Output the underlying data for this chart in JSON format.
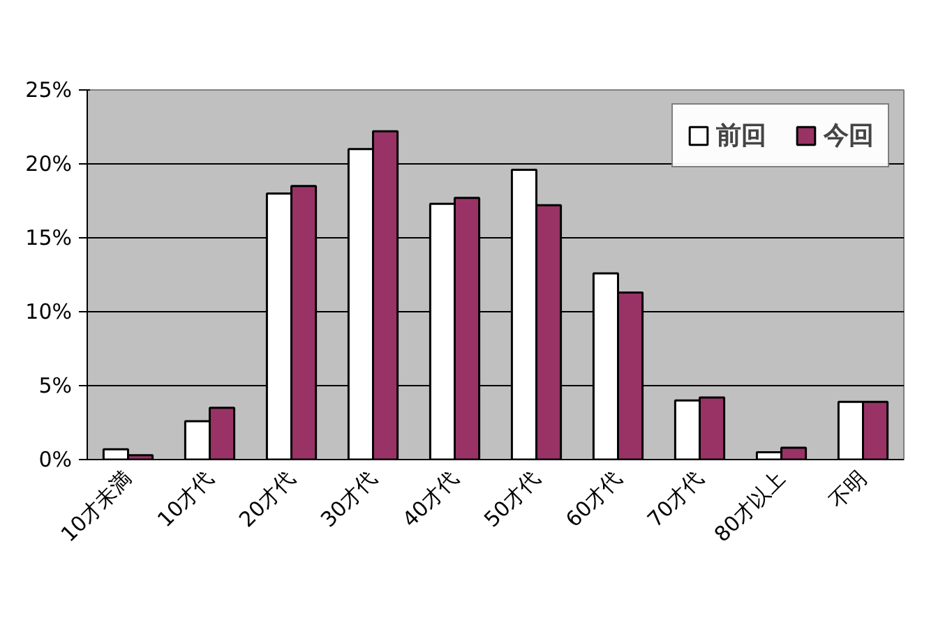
{
  "chart_data": {
    "type": "bar",
    "categories": [
      "10才未満",
      "10才代",
      "20才代",
      "30才代",
      "40才代",
      "50才代",
      "60才代",
      "70才代",
      "80才以上",
      "不明"
    ],
    "series": [
      {
        "name": "前回",
        "color": "#ffffff",
        "values": [
          0.7,
          2.6,
          18.0,
          21.0,
          17.3,
          19.6,
          12.6,
          4.0,
          0.5,
          3.9
        ]
      },
      {
        "name": "今回",
        "color": "#993366",
        "values": [
          0.3,
          3.5,
          18.5,
          22.2,
          17.7,
          17.2,
          11.3,
          4.2,
          0.8,
          3.9
        ]
      }
    ],
    "ylim": [
      0,
      25
    ],
    "yticks": [
      {
        "value": 0,
        "label": "0%"
      },
      {
        "value": 5,
        "label": "5%"
      },
      {
        "value": 10,
        "label": "10%"
      },
      {
        "value": 15,
        "label": "15%"
      },
      {
        "value": 20,
        "label": "20%"
      },
      {
        "value": 25,
        "label": "25%"
      }
    ],
    "grid": "y",
    "legend": "top right"
  }
}
